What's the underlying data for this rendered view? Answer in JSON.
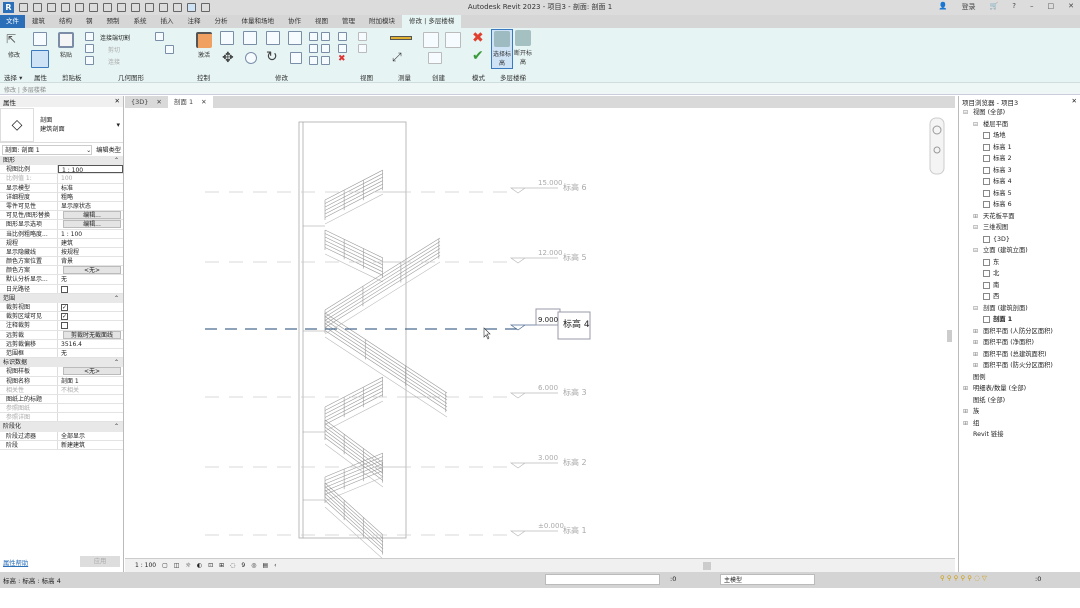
{
  "window": {
    "title": "Autodesk Revit 2023 - 项目3 - 剖面: 剖面 1",
    "user": "登录",
    "controls": [
      "–",
      "□",
      "✕"
    ]
  },
  "ribbon": {
    "tabs": [
      "文件",
      "建筑",
      "结构",
      "钢",
      "预制",
      "系统",
      "插入",
      "注释",
      "分析",
      "体量和场地",
      "协作",
      "视图",
      "管理",
      "附加模块",
      "修改 | 多层楼梯"
    ],
    "active_tab": "修改 | 多层楼梯",
    "buttons": {
      "modify": "修改",
      "paste": "粘贴",
      "cut_join": "连接端切割",
      "cut": "剪切",
      "join": "连接",
      "activate": "激活",
      "select_levels": "选择标高",
      "disconnect_levels": "断开标高"
    },
    "panels": [
      "选择 ▾",
      "属性",
      "剪贴板",
      "几何图形",
      "控制",
      "修改",
      "视图",
      "测量",
      "创建",
      "模式",
      "多层楼梯"
    ]
  },
  "options_bar": {
    "context": "修改 | 多层楼梯"
  },
  "properties": {
    "title": "属性",
    "type_family": "剖面",
    "type_name": "建筑剖面",
    "selector": "剖面: 剖面 1",
    "edit_type": "编辑类型",
    "sections": [
      {
        "name": "图形",
        "rows": [
          {
            "k": "视图比例",
            "v": "1 : 100",
            "t": "input"
          },
          {
            "k": "比例值 1:",
            "v": "100",
            "t": "dim"
          },
          {
            "k": "显示模型",
            "v": "标准"
          },
          {
            "k": "详细程度",
            "v": "粗略"
          },
          {
            "k": "零件可见性",
            "v": "显示原状态"
          },
          {
            "k": "可见性/图形替换",
            "v": "编辑...",
            "t": "button"
          },
          {
            "k": "图形显示选项",
            "v": "编辑...",
            "t": "button"
          },
          {
            "k": "当比例粗略度...",
            "v": "1 : 100"
          },
          {
            "k": "规程",
            "v": "建筑"
          },
          {
            "k": "显示隐藏线",
            "v": "按规程"
          },
          {
            "k": "颜色方案位置",
            "v": "背景"
          },
          {
            "k": "颜色方案",
            "v": "<无>",
            "t": "button"
          },
          {
            "k": "默认分析显示...",
            "v": "无"
          },
          {
            "k": "日光路径",
            "v": "",
            "t": "check"
          }
        ]
      },
      {
        "name": "范围",
        "rows": [
          {
            "k": "裁剪视图",
            "v": "✓",
            "t": "check"
          },
          {
            "k": "裁剪区域可见",
            "v": "✓",
            "t": "check"
          },
          {
            "k": "注释裁剪",
            "v": "",
            "t": "check"
          },
          {
            "k": "远剪裁",
            "v": "剪裁时无截面线",
            "t": "button"
          },
          {
            "k": "远剪裁偏移",
            "v": "3516.4"
          },
          {
            "k": "范围框",
            "v": "无"
          }
        ]
      },
      {
        "name": "标识数据",
        "rows": [
          {
            "k": "视图样板",
            "v": "<无>",
            "t": "button"
          },
          {
            "k": "视图名称",
            "v": "剖面 1"
          },
          {
            "k": "相关性",
            "v": "不相关",
            "t": "dim"
          },
          {
            "k": "图纸上的标题",
            "v": ""
          },
          {
            "k": "参照图纸",
            "v": "",
            "t": "dim"
          },
          {
            "k": "参照详图",
            "v": "",
            "t": "dim"
          }
        ]
      },
      {
        "name": "阶段化",
        "rows": [
          {
            "k": "阶段过滤器",
            "v": "全部显示"
          },
          {
            "k": "阶段",
            "v": "新建建筑"
          }
        ]
      }
    ],
    "help_link": "属性帮助",
    "apply": "应用"
  },
  "view_tabs": [
    {
      "label": "{3D}"
    },
    {
      "label": "剖面 1"
    }
  ],
  "levels": [
    {
      "name": "标高 6",
      "elevation": "15.000"
    },
    {
      "name": "标高 5",
      "elevation": "12.000"
    },
    {
      "name": "标高 4",
      "elevation": "9.000",
      "selected": true
    },
    {
      "name": "标高 3",
      "elevation": "6.000"
    },
    {
      "name": "标高 2",
      "elevation": "3.000"
    },
    {
      "name": "标高 1",
      "elevation": "±0.000"
    }
  ],
  "browser": {
    "title": "项目浏览器 - 项目3",
    "items": [
      {
        "label": "视图 (全部)",
        "d": 0,
        "e": "⊟"
      },
      {
        "label": "楼层平面",
        "d": 1,
        "e": "⊟"
      },
      {
        "label": "场地",
        "d": 2,
        "b": 1
      },
      {
        "label": "标高 1",
        "d": 2,
        "b": 1
      },
      {
        "label": "标高 2",
        "d": 2,
        "b": 1
      },
      {
        "label": "标高 3",
        "d": 2,
        "b": 1
      },
      {
        "label": "标高 4",
        "d": 2,
        "b": 1
      },
      {
        "label": "标高 5",
        "d": 2,
        "b": 1
      },
      {
        "label": "标高 6",
        "d": 2,
        "b": 1
      },
      {
        "label": "天花板平面",
        "d": 1,
        "e": "⊞"
      },
      {
        "label": "三维视图",
        "d": 1,
        "e": "⊟"
      },
      {
        "label": "{3D}",
        "d": 2,
        "b": 1
      },
      {
        "label": "立面 (建筑立面)",
        "d": 1,
        "e": "⊟"
      },
      {
        "label": "东",
        "d": 2,
        "b": 1
      },
      {
        "label": "北",
        "d": 2,
        "b": 1
      },
      {
        "label": "南",
        "d": 2,
        "b": 1
      },
      {
        "label": "西",
        "d": 2,
        "b": 1
      },
      {
        "label": "剖面 (建筑剖面)",
        "d": 1,
        "e": "⊟"
      },
      {
        "label": "剖面 1",
        "d": 2,
        "b": 1,
        "bold": true
      },
      {
        "label": "面积平面 (人防分区面积)",
        "d": 1,
        "e": "⊞"
      },
      {
        "label": "面积平面 (净面积)",
        "d": 1,
        "e": "⊞"
      },
      {
        "label": "面积平面 (总建筑面积)",
        "d": 1,
        "e": "⊞"
      },
      {
        "label": "面积平面 (防火分区面积)",
        "d": 1,
        "e": "⊞"
      },
      {
        "label": "图例",
        "d": 0,
        "e": " "
      },
      {
        "label": "明细表/数量 (全部)",
        "d": 0,
        "e": "⊞"
      },
      {
        "label": "图纸 (全部)",
        "d": 0,
        "e": " "
      },
      {
        "label": "族",
        "d": 0,
        "e": "⊞"
      },
      {
        "label": "组",
        "d": 0,
        "e": "⊞"
      },
      {
        "label": "Revit 链接",
        "d": 0,
        "e": " "
      }
    ]
  },
  "view_control": {
    "scale": "1 : 100",
    "count": "9"
  },
  "status": {
    "text": "标高 : 标高 : 标高 4",
    "select_count": ":0",
    "model": "主模型",
    "filter_count": ":0"
  }
}
